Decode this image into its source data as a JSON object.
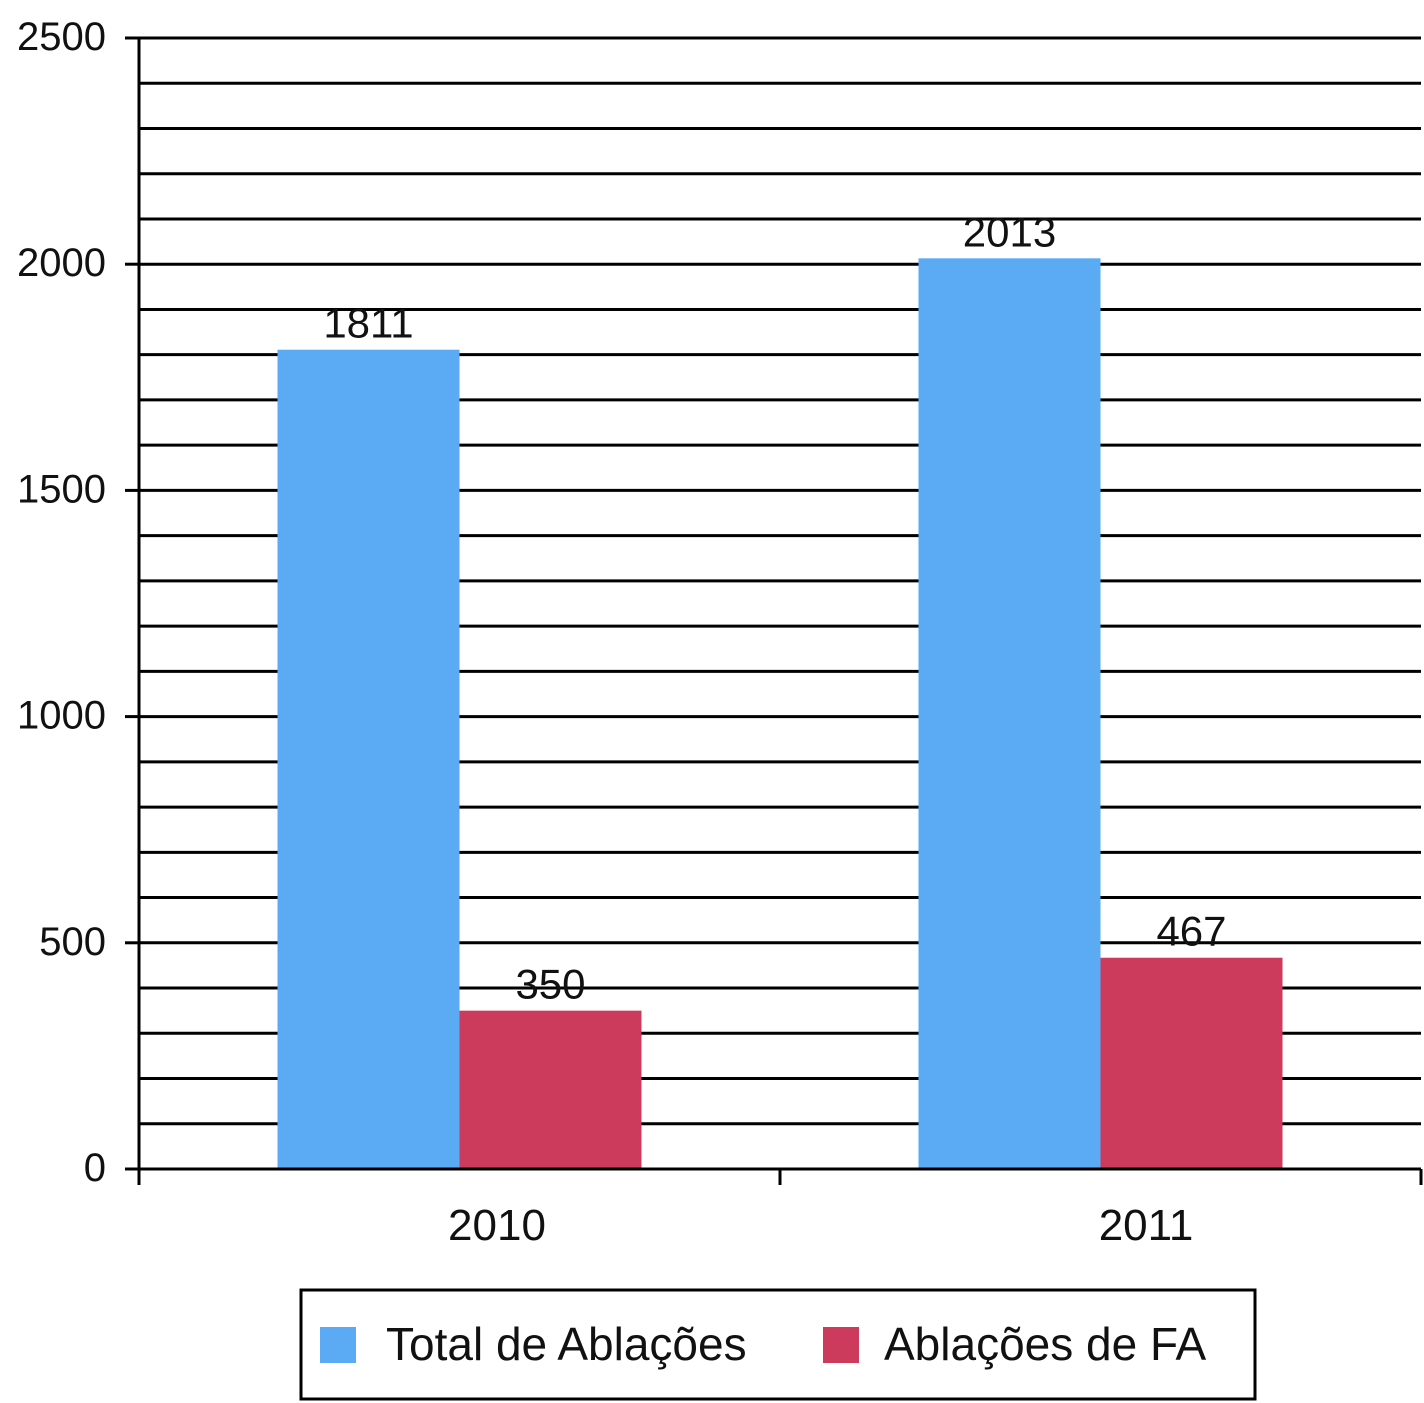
{
  "chart_data": {
    "type": "bar",
    "categories": [
      "2010",
      "2011"
    ],
    "series": [
      {
        "name": "Total de Ablações",
        "values": [
          1811,
          2013
        ],
        "color": "#5aabf3"
      },
      {
        "name": "Ablações de FA",
        "values": [
          350,
          467
        ],
        "color": "#cc3b5c"
      }
    ],
    "ylim": [
      0,
      2500
    ],
    "y_ticks": [
      "0",
      "500",
      "1000",
      "1500",
      "2000",
      "2500"
    ],
    "y_tick_values": [
      0,
      500,
      1000,
      1500,
      2000,
      2500
    ],
    "minor_grid_step": 100,
    "grid": true,
    "legend_position": "bottom",
    "data_labels": true
  }
}
